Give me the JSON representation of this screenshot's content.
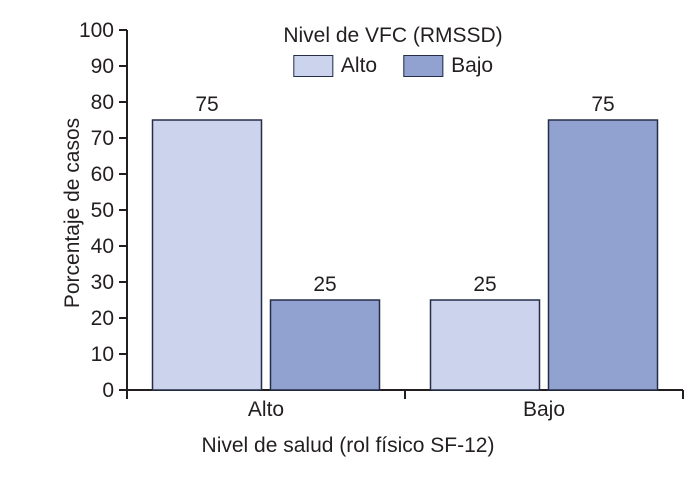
{
  "figure": {
    "background": "#ffffff",
    "text_color": "#231f20",
    "axis_color": "#231f20",
    "bar_border_color": "#252e49"
  },
  "chart_data": {
    "type": "bar",
    "legend_title": "Nivel de VFC (RMSSD)",
    "categories": [
      "Alto",
      "Bajo"
    ],
    "series": [
      {
        "name": "Alto",
        "color": "#ccd3ec",
        "values": [
          75,
          25
        ]
      },
      {
        "name": "Bajo",
        "color": "#91a1d0",
        "values": [
          25,
          75
        ]
      }
    ],
    "xlabel": "Nivel de salud (rol físico SF-12)",
    "ylabel": "Porcentaje de casos",
    "ylim": [
      0,
      100
    ],
    "yticks": [
      0,
      10,
      20,
      30,
      40,
      50,
      60,
      70,
      80,
      90,
      100
    ],
    "value_labels": true,
    "legend_position": "top-center",
    "grid": false
  }
}
